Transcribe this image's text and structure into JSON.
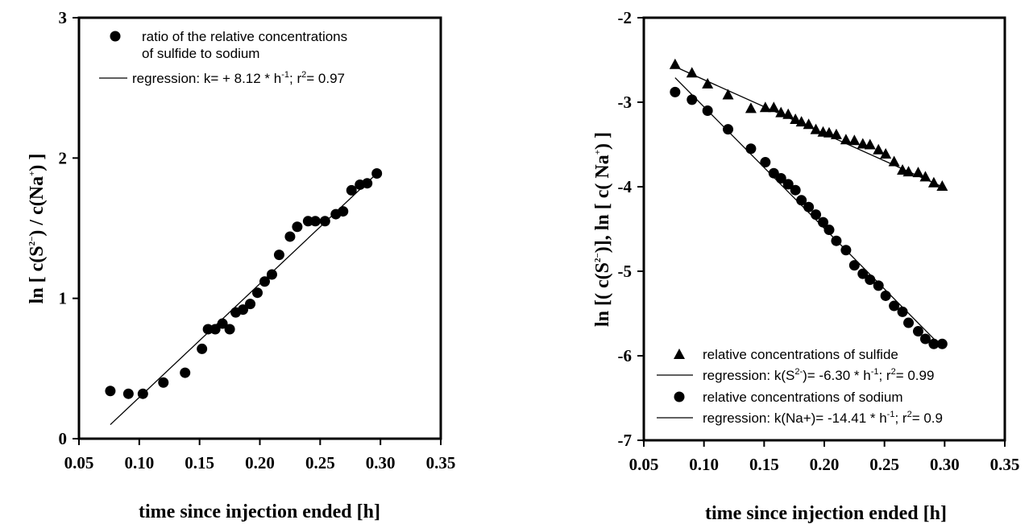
{
  "chart_data": [
    {
      "type": "scatter",
      "xlabel": "time since injection ended [h]",
      "ylabel": {
        "pre": "ln [ c(S",
        "sup1": "2−",
        "mid": ") / c(Na",
        "sup2": "+",
        "post": ") ]"
      },
      "xlim": [
        0.05,
        0.35
      ],
      "ylim": [
        0,
        3
      ],
      "xticks": [
        "0.05",
        "0.10",
        "0.15",
        "0.20",
        "0.25",
        "0.30",
        "0.35"
      ],
      "yticks": [
        "0",
        "1",
        "2",
        "3"
      ],
      "grid": false,
      "legend_position": "top-left",
      "series": [
        {
          "name": "ratio of the relative concentrations of sulfide to sodium",
          "legend_lines": [
            "ratio of the relative concentrations",
            "of sulfide to sodium"
          ],
          "marker": "circle",
          "points": [
            [
              0.076,
              0.34
            ],
            [
              0.091,
              0.32
            ],
            [
              0.103,
              0.32
            ],
            [
              0.12,
              0.4
            ],
            [
              0.138,
              0.47
            ],
            [
              0.152,
              0.64
            ],
            [
              0.157,
              0.78
            ],
            [
              0.163,
              0.78
            ],
            [
              0.169,
              0.82
            ],
            [
              0.175,
              0.78
            ],
            [
              0.18,
              0.9
            ],
            [
              0.186,
              0.92
            ],
            [
              0.192,
              0.96
            ],
            [
              0.198,
              1.04
            ],
            [
              0.204,
              1.12
            ],
            [
              0.21,
              1.17
            ],
            [
              0.216,
              1.31
            ],
            [
              0.225,
              1.44
            ],
            [
              0.231,
              1.51
            ],
            [
              0.24,
              1.55
            ],
            [
              0.246,
              1.55
            ],
            [
              0.254,
              1.55
            ],
            [
              0.263,
              1.6
            ],
            [
              0.269,
              1.62
            ],
            [
              0.276,
              1.77
            ],
            [
              0.283,
              1.81
            ],
            [
              0.289,
              1.82
            ],
            [
              0.297,
              1.89
            ]
          ]
        },
        {
          "name": "regression: k= + 8.12 * h-1; r2= 0.97",
          "legend_text": {
            "pre": "regression: k= + 8.12 * h",
            "sup1": "-1",
            "mid": "; r",
            "sup2": "2",
            "post": "= 0.97"
          },
          "marker": "line",
          "line": [
            [
              0.076,
              0.1
            ],
            [
              0.297,
              1.89
            ]
          ]
        }
      ]
    },
    {
      "type": "scatter",
      "xlabel": "time since injection ended [h]",
      "ylabel": {
        "pre": "ln [( c(S",
        "sup1": "2−",
        "mid": ")], ln [ c( Na",
        "sup2": "+",
        "post": ") ]"
      },
      "xlim": [
        0.05,
        0.35
      ],
      "ylim": [
        -7,
        -2
      ],
      "xticks": [
        "0.05",
        "0.10",
        "0.15",
        "0.20",
        "0.25",
        "0.30",
        "0.35"
      ],
      "yticks": [
        "-2",
        "-3",
        "-4",
        "-5",
        "-6",
        "-7"
      ],
      "grid": false,
      "legend_position": "bottom-left",
      "series": [
        {
          "name": "relative concentrations of sulfide",
          "marker": "triangle",
          "points": [
            [
              0.076,
              -2.55
            ],
            [
              0.09,
              -2.65
            ],
            [
              0.103,
              -2.78
            ],
            [
              0.12,
              -2.91
            ],
            [
              0.139,
              -3.07
            ],
            [
              0.151,
              -3.06
            ],
            [
              0.158,
              -3.06
            ],
            [
              0.164,
              -3.12
            ],
            [
              0.17,
              -3.14
            ],
            [
              0.176,
              -3.2
            ],
            [
              0.181,
              -3.23
            ],
            [
              0.187,
              -3.26
            ],
            [
              0.193,
              -3.32
            ],
            [
              0.199,
              -3.35
            ],
            [
              0.204,
              -3.36
            ],
            [
              0.21,
              -3.38
            ],
            [
              0.218,
              -3.44
            ],
            [
              0.225,
              -3.45
            ],
            [
              0.232,
              -3.49
            ],
            [
              0.238,
              -3.5
            ],
            [
              0.245,
              -3.56
            ],
            [
              0.251,
              -3.61
            ],
            [
              0.258,
              -3.7
            ],
            [
              0.265,
              -3.8
            ],
            [
              0.27,
              -3.82
            ],
            [
              0.278,
              -3.83
            ],
            [
              0.284,
              -3.88
            ],
            [
              0.291,
              -3.95
            ],
            [
              0.298,
              -3.99
            ]
          ]
        },
        {
          "name": "regression: k(S2-)= -6.30 * h-1; r2= 0.99",
          "legend_text": {
            "pre": "regression: k(S",
            "sup1": "2-",
            "mid": ")= -6.30 * h",
            "sup2": "-1",
            "mid2": "; r",
            "sup3": "2",
            "post": "= 0.99"
          },
          "marker": "line",
          "line": [
            [
              0.076,
              -2.58
            ],
            [
              0.298,
              -4.0
            ]
          ]
        },
        {
          "name": "relative concentrations of sodium",
          "marker": "circle",
          "points": [
            [
              0.076,
              -2.88
            ],
            [
              0.09,
              -2.97
            ],
            [
              0.103,
              -3.1
            ],
            [
              0.12,
              -3.32
            ],
            [
              0.139,
              -3.55
            ],
            [
              0.151,
              -3.71
            ],
            [
              0.158,
              -3.84
            ],
            [
              0.164,
              -3.9
            ],
            [
              0.17,
              -3.97
            ],
            [
              0.176,
              -4.04
            ],
            [
              0.181,
              -4.16
            ],
            [
              0.187,
              -4.24
            ],
            [
              0.193,
              -4.33
            ],
            [
              0.199,
              -4.42
            ],
            [
              0.204,
              -4.51
            ],
            [
              0.21,
              -4.64
            ],
            [
              0.218,
              -4.75
            ],
            [
              0.225,
              -4.93
            ],
            [
              0.232,
              -5.03
            ],
            [
              0.238,
              -5.1
            ],
            [
              0.245,
              -5.17
            ],
            [
              0.251,
              -5.29
            ],
            [
              0.258,
              -5.41
            ],
            [
              0.265,
              -5.48
            ],
            [
              0.27,
              -5.61
            ],
            [
              0.278,
              -5.71
            ],
            [
              0.284,
              -5.8
            ],
            [
              0.291,
              -5.86
            ],
            [
              0.298,
              -5.86
            ]
          ]
        },
        {
          "name": "regression: k(Na+)= -14.41 * h-1; r2= 0.9",
          "legend_text": {
            "pre": "regression: k(Na+)= -14.41 * h",
            "sup1": "-1",
            "mid": "; r",
            "sup2": "2",
            "post": "= 0.9"
          },
          "marker": "line",
          "line": [
            [
              0.076,
              -2.71
            ],
            [
              0.298,
              -5.9
            ]
          ]
        }
      ]
    }
  ]
}
